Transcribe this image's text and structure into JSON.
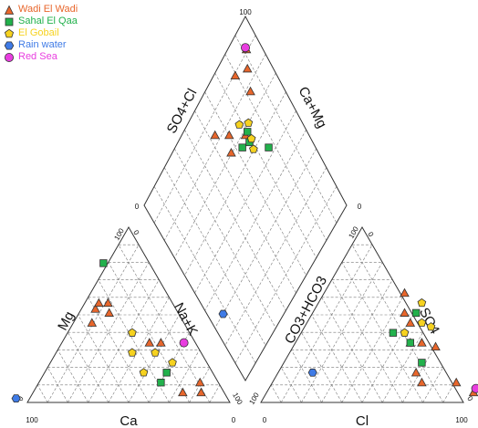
{
  "chart_data": {
    "type": "scatter",
    "subtype": "piper-diagram",
    "legend_position": "top-left",
    "grid": true,
    "series": [
      {
        "name": "Wadi El Wadi",
        "marker": "triangle",
        "color": "#e8662b",
        "cation": [
          {
            "ca": 35,
            "mg": 47,
            "nak": 18
          },
          {
            "ca": 40,
            "mg": 40,
            "nak": 20
          },
          {
            "ca": 30,
            "mg": 45,
            "nak": 25
          },
          {
            "ca": 32,
            "mg": 50,
            "nak": 18
          },
          {
            "ca": 28,
            "mg": 50,
            "nak": 22
          },
          {
            "ca": 20,
            "mg": 30,
            "nak": 50
          },
          {
            "ca": 15,
            "mg": 30,
            "nak": 55
          },
          {
            "ca": 8,
            "mg": 10,
            "nak": 82
          },
          {
            "ca": 18,
            "mg": 5,
            "nak": 77
          },
          {
            "ca": 10,
            "mg": 5,
            "nak": 85
          }
        ],
        "anion": [
          {
            "cl": 35,
            "so4": 55,
            "hco3": 10
          },
          {
            "cl": 40,
            "so4": 45,
            "hco3": 15
          },
          {
            "cl": 45,
            "so4": 40,
            "hco3": 15
          },
          {
            "cl": 50,
            "so4": 30,
            "hco3": 20
          },
          {
            "cl": 55,
            "so4": 30,
            "hco3": 15
          },
          {
            "cl": 62,
            "so4": 28,
            "hco3": 10
          },
          {
            "cl": 65,
            "so4": 10,
            "hco3": 25
          },
          {
            "cl": 80,
            "so4": 10,
            "hco3": 10
          },
          {
            "cl": 90,
            "so4": 5,
            "hco3": 5
          },
          {
            "cl": 60,
            "so4": 15,
            "hco3": 25
          }
        ],
        "diamond": [
          {
            "cation": 55,
            "anion": 85
          },
          {
            "cation": 62,
            "anion": 78
          },
          {
            "cation": 70,
            "anion": 70
          },
          {
            "cation": 58,
            "anion": 72
          },
          {
            "cation": 85,
            "anion": 80
          },
          {
            "cation": 82,
            "anion": 92
          },
          {
            "cation": 90,
            "anion": 88
          },
          {
            "cation": 95,
            "anion": 94
          }
        ]
      },
      {
        "name": "Sahal El Qaa",
        "marker": "square",
        "color": "#22b14c",
        "cation": [
          {
            "ca": 20,
            "mg": 70,
            "nak": 10
          },
          {
            "ca": 20,
            "mg": 15,
            "nak": 65
          },
          {
            "ca": 25,
            "mg": 10,
            "nak": 65
          }
        ],
        "anion": [
          {
            "cl": 45,
            "so4": 45,
            "hco3": 10
          },
          {
            "cl": 40,
            "so4": 35,
            "hco3": 25
          },
          {
            "cl": 60,
            "so4": 20,
            "hco3": 20
          },
          {
            "cl": 50,
            "so4": 30,
            "hco3": 20
          }
        ],
        "diamond": [
          {
            "cation": 78,
            "anion": 55
          },
          {
            "cation": 72,
            "anion": 70
          },
          {
            "cation": 65,
            "anion": 68
          },
          {
            "cation": 70,
            "anion": 66
          }
        ]
      },
      {
        "name": "El Gobail",
        "marker": "pentagon",
        "color": "#f6d21f",
        "cation": [
          {
            "ca": 25,
            "mg": 35,
            "nak": 40
          },
          {
            "ca": 30,
            "mg": 25,
            "nak": 45
          },
          {
            "ca": 15,
            "mg": 20,
            "nak": 65
          },
          {
            "ca": 20,
            "mg": 25,
            "nak": 55
          },
          {
            "ca": 30,
            "mg": 15,
            "nak": 55
          }
        ],
        "anion": [
          {
            "cl": 45,
            "so4": 50,
            "hco3": 5
          },
          {
            "cl": 50,
            "so4": 40,
            "hco3": 10
          },
          {
            "cl": 55,
            "so4": 38,
            "hco3": 7
          },
          {
            "cl": 45,
            "so4": 35,
            "hco3": 20
          }
        ],
        "diamond": [
          {
            "cation": 70,
            "anion": 62
          },
          {
            "cation": 72,
            "anion": 66
          },
          {
            "cation": 75,
            "anion": 72
          },
          {
            "cation": 70,
            "anion": 76
          }
        ]
      },
      {
        "name": "Rain water",
        "marker": "hexagon",
        "color": "#3f7be6",
        "cation": [
          {
            "ca": 92,
            "mg": 2,
            "nak": 6
          }
        ],
        "anion": [
          {
            "cl": 15,
            "so4": 15,
            "hco3": 70
          }
        ],
        "diamond": [
          {
            "cation": 8,
            "anion": 30
          }
        ]
      },
      {
        "name": "Red Sea",
        "marker": "circle",
        "color": "#e83ddf",
        "cation": [
          {
            "ca": 5,
            "mg": 30,
            "nak": 65
          }
        ],
        "anion": [
          {
            "cl": 90,
            "so4": 7,
            "hco3": 3
          }
        ],
        "diamond": [
          {
            "cation": 95,
            "anion": 95
          }
        ]
      }
    ],
    "labels": {
      "diamond_left": "SO4+Cl",
      "diamond_right": "Ca+Mg",
      "cation_left": "Mg",
      "cation_right": "Na+K",
      "cation_bottom": "Ca",
      "anion_left": "CO3+HCO3",
      "anion_right": "SO4",
      "anion_bottom": "Cl"
    },
    "ticks": {
      "zero": "0",
      "hundred": "100"
    }
  }
}
